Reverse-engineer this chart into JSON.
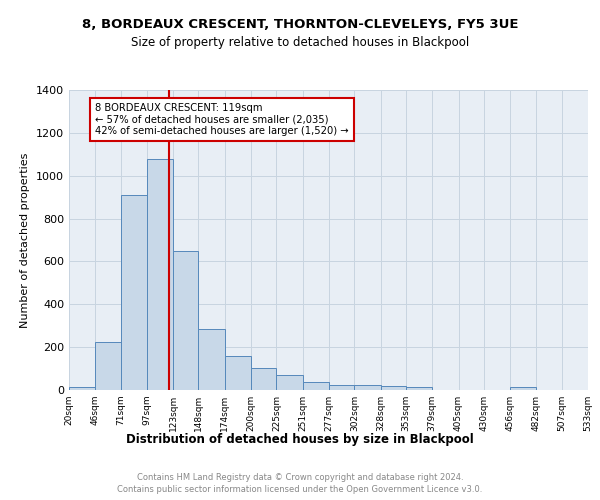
{
  "title1": "8, BORDEAUX CRESCENT, THORNTON-CLEVELEYS, FY5 3UE",
  "title2": "Size of property relative to detached houses in Blackpool",
  "xlabel": "Distribution of detached houses by size in Blackpool",
  "ylabel": "Number of detached properties",
  "bar_color": "#c8d8e8",
  "bar_edge_color": "#5588bb",
  "bins": [
    20,
    46,
    71,
    97,
    123,
    148,
    174,
    200,
    225,
    251,
    277,
    302,
    328,
    353,
    379,
    405,
    430,
    456,
    482,
    507,
    533
  ],
  "values": [
    15,
    222,
    912,
    1080,
    650,
    287,
    157,
    102,
    70,
    38,
    25,
    22,
    18,
    12,
    0,
    0,
    0,
    12,
    0,
    0
  ],
  "tick_labels": [
    "20sqm",
    "46sqm",
    "71sqm",
    "97sqm",
    "123sqm",
    "148sqm",
    "174sqm",
    "200sqm",
    "225sqm",
    "251sqm",
    "277sqm",
    "302sqm",
    "328sqm",
    "353sqm",
    "379sqm",
    "405sqm",
    "430sqm",
    "456sqm",
    "482sqm",
    "507sqm",
    "533sqm"
  ],
  "vline_x": 119,
  "vline_color": "#cc0000",
  "annotation_text": "8 BORDEAUX CRESCENT: 119sqm\n← 57% of detached houses are smaller (2,035)\n42% of semi-detached houses are larger (1,520) →",
  "ylim": [
    0,
    1400
  ],
  "yticks": [
    0,
    200,
    400,
    600,
    800,
    1000,
    1200,
    1400
  ],
  "footer1": "Contains HM Land Registry data © Crown copyright and database right 2024.",
  "footer2": "Contains public sector information licensed under the Open Government Licence v3.0.",
  "bg_color": "#ffffff",
  "grid_color": "#c8d4e0",
  "ax_bg_color": "#e8eef5"
}
